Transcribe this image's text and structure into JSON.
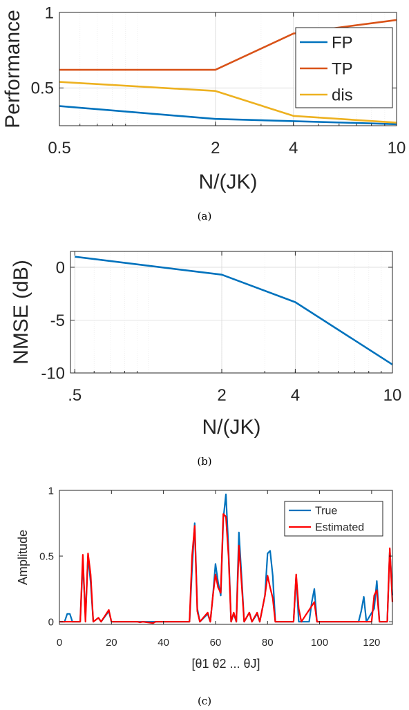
{
  "chart_data": [
    {
      "type": "line",
      "ylabel": "Performance",
      "xlabel": "N/(JK)",
      "caption": "(a)",
      "x_scale": "log",
      "xlim": [
        0.5,
        10
      ],
      "ylim": [
        0.25,
        1
      ],
      "x_ticks": [
        0.5,
        2,
        4,
        10
      ],
      "x_tick_labels": [
        "0.5",
        "2",
        "4",
        "10"
      ],
      "y_ticks": [
        0.5,
        1
      ],
      "y_tick_labels": [
        "0.5",
        "1"
      ],
      "grid": true,
      "legend_position": "top-right",
      "x": [
        0.5,
        2,
        4,
        10
      ],
      "series": [
        {
          "name": "FP",
          "color": "#0072BD",
          "values": [
            0.38,
            0.295,
            0.28,
            0.26
          ]
        },
        {
          "name": "TP",
          "color": "#D95319",
          "values": [
            0.62,
            0.62,
            0.86,
            0.95
          ]
        },
        {
          "name": "dis",
          "color": "#EDB120",
          "values": [
            0.54,
            0.48,
            0.315,
            0.27
          ]
        }
      ]
    },
    {
      "type": "line",
      "ylabel": "NMSE (dB)",
      "xlabel": "N/(JK)",
      "caption": "(b)",
      "x_scale": "log",
      "xlim": [
        0.48,
        10
      ],
      "ylim": [
        -10,
        1.5
      ],
      "x_ticks": [
        0.5,
        2,
        4,
        10
      ],
      "x_tick_labels": [
        ".5",
        "2",
        "4",
        "10"
      ],
      "y_ticks": [
        -10,
        -5,
        0
      ],
      "y_tick_labels": [
        "-10",
        "-5",
        "0"
      ],
      "grid": true,
      "x": [
        0.5,
        2,
        4,
        10
      ],
      "series": [
        {
          "color": "#0072BD",
          "values": [
            1.0,
            -0.7,
            -3.3,
            -9.2
          ]
        }
      ]
    },
    {
      "type": "line",
      "ylabel": "Amplitude",
      "xlabel": "[θ1 θ2 ... θJ]",
      "caption": "(c)",
      "xlim": [
        0,
        128
      ],
      "ylim": [
        -0.02,
        1
      ],
      "x_ticks": [
        0,
        20,
        40,
        60,
        80,
        100,
        120
      ],
      "x_tick_labels": [
        "0",
        "20",
        "40",
        "60",
        "80",
        "100",
        "120"
      ],
      "y_ticks": [
        0,
        0.5,
        1
      ],
      "y_tick_labels": [
        "0",
        "0.5",
        "1"
      ],
      "grid": false,
      "legend_position": "top-right",
      "series": [
        {
          "name": "True",
          "color": "#0072BD",
          "points": [
            [
              0,
              0
            ],
            [
              2,
              0
            ],
            [
              3,
              0.06
            ],
            [
              4,
              0.06
            ],
            [
              5,
              0
            ],
            [
              8,
              0
            ],
            [
              9,
              0.45
            ],
            [
              10,
              0.05
            ],
            [
              11,
              0.5
            ],
            [
              12,
              0.3
            ],
            [
              13,
              0
            ],
            [
              15,
              0.03
            ],
            [
              16,
              0
            ],
            [
              19,
              0.08
            ],
            [
              20,
              0
            ],
            [
              50,
              0
            ],
            [
              51,
              0.4
            ],
            [
              52,
              0.75
            ],
            [
              53,
              0.1
            ],
            [
              54,
              0
            ],
            [
              57,
              0.06
            ],
            [
              58,
              0
            ],
            [
              59,
              0.2
            ],
            [
              60,
              0.44
            ],
            [
              61,
              0.3
            ],
            [
              62,
              0.2
            ],
            [
              63,
              0.78
            ],
            [
              64,
              0.97
            ],
            [
              65,
              0.55
            ],
            [
              66,
              0
            ],
            [
              67,
              0.06
            ],
            [
              68,
              0
            ],
            [
              69,
              0.68
            ],
            [
              70,
              0.35
            ],
            [
              71,
              0
            ],
            [
              73,
              0.07
            ],
            [
              74,
              0
            ],
            [
              76,
              0.06
            ],
            [
              77,
              0
            ],
            [
              79,
              0.2
            ],
            [
              80,
              0.52
            ],
            [
              81,
              0.54
            ],
            [
              82,
              0.35
            ],
            [
              83,
              0
            ],
            [
              90,
              0
            ],
            [
              91,
              0.35
            ],
            [
              92,
              0
            ],
            [
              96,
              0
            ],
            [
              97,
              0.15
            ],
            [
              98,
              0.25
            ],
            [
              99,
              0
            ],
            [
              115,
              0
            ],
            [
              116,
              0.08
            ],
            [
              117,
              0.19
            ],
            [
              118,
              0
            ],
            [
              121,
              0.1
            ],
            [
              122,
              0.31
            ],
            [
              123,
              0
            ],
            [
              126,
              0
            ],
            [
              127,
              0.55
            ],
            [
              128,
              0.2
            ]
          ]
        },
        {
          "name": "Estimated",
          "color": "#FF0000",
          "points": [
            [
              0,
              0
            ],
            [
              8,
              0
            ],
            [
              9,
              0.51
            ],
            [
              10,
              0
            ],
            [
              11,
              0.52
            ],
            [
              12,
              0.36
            ],
            [
              13,
              0
            ],
            [
              15,
              0.03
            ],
            [
              16,
              0
            ],
            [
              19,
              0.09
            ],
            [
              20,
              0
            ],
            [
              30,
              0
            ],
            [
              31,
              -0.005
            ],
            [
              32,
              0
            ],
            [
              36,
              -0.01
            ],
            [
              37,
              0
            ],
            [
              50,
              0
            ],
            [
              51,
              0.5
            ],
            [
              52,
              0.73
            ],
            [
              53,
              0.08
            ],
            [
              54,
              0
            ],
            [
              57,
              0.07
            ],
            [
              58,
              0
            ],
            [
              59,
              0.2
            ],
            [
              60,
              0.36
            ],
            [
              61,
              0.26
            ],
            [
              62,
              0.22
            ],
            [
              63,
              0.82
            ],
            [
              64,
              0.8
            ],
            [
              65,
              0.5
            ],
            [
              66,
              0
            ],
            [
              67,
              0.07
            ],
            [
              68,
              0
            ],
            [
              69,
              0.58
            ],
            [
              70,
              0.3
            ],
            [
              71,
              0
            ],
            [
              73,
              0.07
            ],
            [
              74,
              0
            ],
            [
              76,
              0.07
            ],
            [
              77,
              0
            ],
            [
              79,
              0.2
            ],
            [
              80,
              0.35
            ],
            [
              81,
              0.26
            ],
            [
              82,
              0.18
            ],
            [
              83,
              0
            ],
            [
              90,
              0
            ],
            [
              91,
              0.36
            ],
            [
              92,
              0.1
            ],
            [
              93,
              0
            ],
            [
              98,
              0.15
            ],
            [
              99,
              0
            ],
            [
              120,
              0
            ],
            [
              121,
              0.2
            ],
            [
              122,
              0.24
            ],
            [
              123,
              0
            ],
            [
              126,
              0
            ],
            [
              127,
              0.56
            ],
            [
              128,
              0.15
            ]
          ]
        }
      ]
    }
  ]
}
